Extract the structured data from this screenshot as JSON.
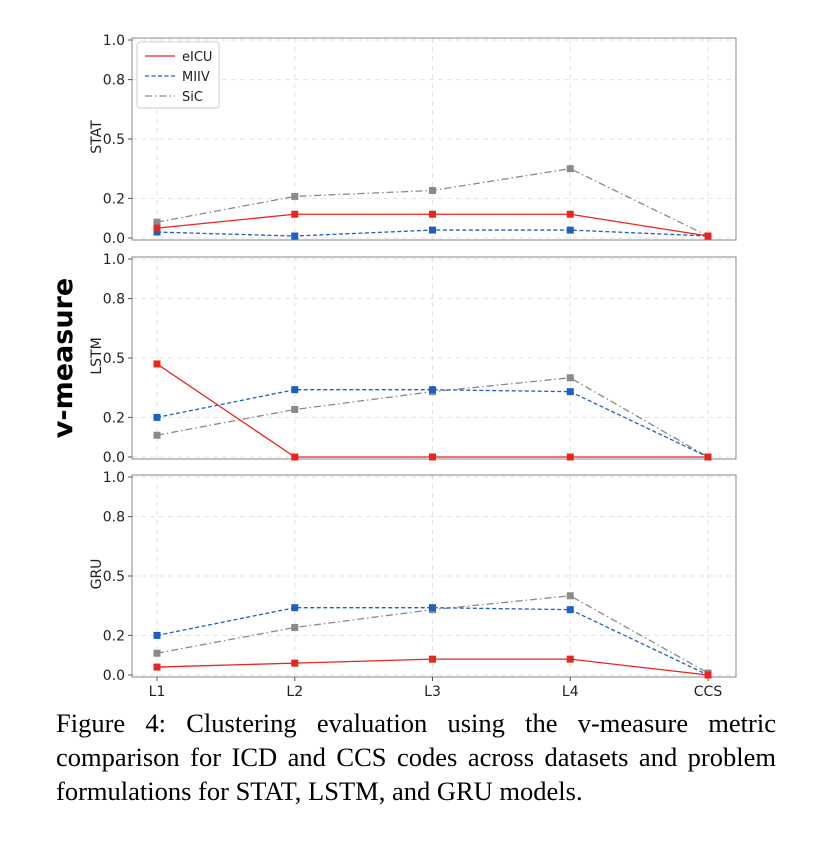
{
  "figure": {
    "shared_ylabel": "v-measure",
    "colors": {
      "eICU": "#e8251f",
      "MIIV": "#1f5fbf",
      "SiC": "#8a8a8a"
    }
  },
  "chart_data": [
    {
      "type": "line",
      "panel_label": "STAT",
      "categories": [
        "L1",
        "L2",
        "L3",
        "L4",
        "CCS"
      ],
      "ylim": [
        0,
        1.0
      ],
      "yticks": [
        0.0,
        0.2,
        0.5,
        0.8,
        1.0
      ],
      "ytick_labels": [
        "0.0",
        "0.2",
        "0.5",
        "0.8",
        "1.0"
      ],
      "grid": true,
      "legend": "top-left",
      "series": [
        {
          "name": "eICU",
          "values": [
            0.05,
            0.12,
            0.12,
            0.12,
            0.01
          ]
        },
        {
          "name": "MIIV",
          "values": [
            0.03,
            0.01,
            0.04,
            0.04,
            0.01
          ]
        },
        {
          "name": "SiC",
          "values": [
            0.08,
            0.21,
            0.24,
            0.35,
            0.01
          ]
        }
      ]
    },
    {
      "type": "line",
      "panel_label": "LSTM",
      "categories": [
        "L1",
        "L2",
        "L3",
        "L4",
        "CCS"
      ],
      "ylim": [
        0,
        1.0
      ],
      "yticks": [
        0.0,
        0.2,
        0.5,
        0.8,
        1.0
      ],
      "ytick_labels": [
        "0.0",
        "0.2",
        "0.5",
        "0.8",
        "1.0"
      ],
      "grid": true,
      "series": [
        {
          "name": "eICU",
          "values": [
            0.47,
            0.0,
            0.0,
            0.0,
            0.0
          ]
        },
        {
          "name": "MIIV",
          "values": [
            0.2,
            0.34,
            0.34,
            0.33,
            0.0
          ]
        },
        {
          "name": "SiC",
          "values": [
            0.11,
            0.24,
            0.33,
            0.4,
            0.0
          ]
        }
      ]
    },
    {
      "type": "line",
      "panel_label": "GRU",
      "categories": [
        "L1",
        "L2",
        "L3",
        "L4",
        "CCS"
      ],
      "ylim": [
        0,
        1.0
      ],
      "yticks": [
        0.0,
        0.2,
        0.5,
        0.8,
        1.0
      ],
      "ytick_labels": [
        "0.0",
        "0.2",
        "0.5",
        "0.8",
        "1.0"
      ],
      "grid": true,
      "series": [
        {
          "name": "eICU",
          "values": [
            0.04,
            0.06,
            0.08,
            0.08,
            0.0
          ]
        },
        {
          "name": "MIIV",
          "values": [
            0.2,
            0.34,
            0.34,
            0.33,
            0.0
          ]
        },
        {
          "name": "SiC",
          "values": [
            0.11,
            0.24,
            0.33,
            0.4,
            0.01
          ]
        }
      ]
    }
  ],
  "caption": "Figure 4: Clustering evaluation using the v-measure metric comparison for ICD and CCS codes across datasets and problem formulations for STAT, LSTM, and GRU models."
}
